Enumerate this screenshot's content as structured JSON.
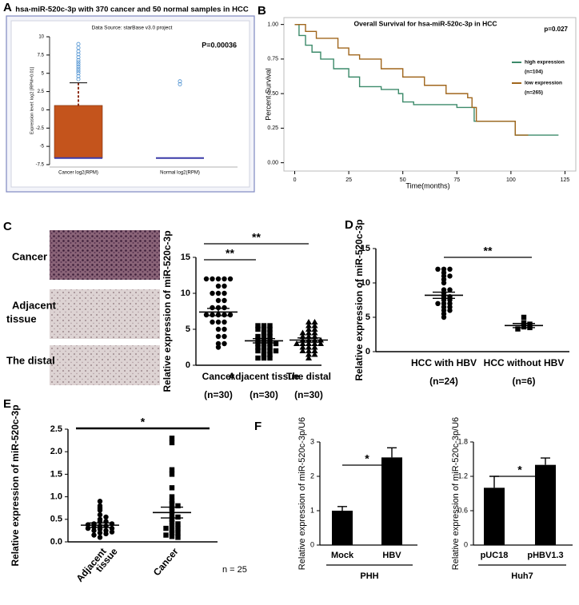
{
  "chart_data": [
    {
      "type": "box",
      "label": "A",
      "title": "hsa-miR-520c-3p with 370 cancer and 50 normal samples in HCC",
      "subtitle": "Data Source: starBase v3.0 project",
      "annotation": "P=0.00036",
      "y_label": "Expression level: log2 [RPM+0.01]",
      "categories": [
        "Cancer log2(RPM)",
        "Normal log2(RPM)"
      ],
      "boxes": [
        {
          "q1": -6.6,
          "median": -6.6,
          "q3": 0.6,
          "whisker_high": 3.7,
          "outliers": [
            4.2,
            4.6,
            5.0,
            5.3,
            5.6,
            5.9,
            6.2,
            6.5,
            6.8,
            7.2,
            7.6,
            8.0,
            8.5,
            9.0
          ]
        },
        {
          "q1": -6.6,
          "median": -6.6,
          "q3": -6.6,
          "whisker_high": -6.6,
          "outliers": [
            3.9,
            3.5
          ]
        }
      ],
      "box_color": "#c4541c",
      "median_color": "#3a3aa8",
      "outlier_color": "#4a8fd0",
      "whisker_color": "#8b2a10",
      "ylim": [
        -7.5,
        10
      ],
      "yticks": [
        10,
        7.5,
        5,
        2.5,
        0,
        -2.5,
        -5,
        -7.5
      ]
    },
    {
      "type": "line",
      "label": "B",
      "title": "Overall Survival for hsa-miR-520c-3p in HCC",
      "annotation": "p=0.027",
      "y_label": "Percent Survival",
      "x_label": "Time(months)",
      "series": [
        {
          "name": "high expression",
          "n_label": "(n=104)",
          "color": "#3c8a6a",
          "x": [
            0,
            2,
            5,
            8,
            12,
            18,
            25,
            30,
            40,
            48,
            50,
            55,
            75,
            83,
            100,
            102,
            122
          ],
          "values": [
            1,
            0.92,
            0.85,
            0.8,
            0.75,
            0.68,
            0.62,
            0.55,
            0.53,
            0.5,
            0.44,
            0.42,
            0.4,
            0.3,
            0.3,
            0.2,
            0.2
          ]
        },
        {
          "name": "low expression",
          "n_label": "(n=265)",
          "color": "#a0661c",
          "x": [
            0,
            5,
            10,
            20,
            25,
            30,
            40,
            50,
            60,
            70,
            80,
            82,
            84,
            100,
            102,
            108
          ],
          "values": [
            1,
            0.95,
            0.9,
            0.83,
            0.78,
            0.75,
            0.68,
            0.62,
            0.56,
            0.5,
            0.47,
            0.4,
            0.3,
            0.3,
            0.2,
            0.2
          ]
        }
      ],
      "xlim": [
        -5,
        130
      ],
      "xticks": [
        0,
        25,
        50,
        75,
        100,
        125
      ],
      "ylim": [
        -0.06,
        1.05
      ],
      "yticks": [
        {
          "value": 1,
          "label": "1.00"
        },
        0.75,
        {
          "value": 0.5,
          "label": "0.50"
        },
        0.25,
        {
          "value": 0,
          "label": "0.00"
        }
      ]
    },
    {
      "type": "dotplot",
      "label": "C",
      "image_labels": [
        [
          "Cancer"
        ],
        [
          "Adjacent",
          "tissue"
        ],
        [
          "The distal"
        ]
      ],
      "y_label": "Relative expression of miR-520c-3p",
      "categories": [
        "Cancer",
        "Adjacent tissue",
        "The distal"
      ],
      "n_labels": [
        "(n=30)",
        "(n=30)",
        "(n=30)"
      ],
      "significance": [
        "**",
        "**"
      ],
      "groups": [
        {
          "marker": "circle",
          "mean": 7.4,
          "sem": 0.5,
          "values": [
            12,
            12,
            12,
            12,
            12,
            11,
            11,
            10,
            10,
            10,
            9,
            9,
            8,
            8,
            8,
            7,
            7,
            7,
            7,
            7,
            6,
            6,
            6,
            5,
            5,
            4,
            4,
            3,
            3,
            2.5
          ]
        },
        {
          "marker": "square",
          "mean": 3.4,
          "sem": 0.3,
          "values": [
            5.5,
            5.5,
            5.5,
            5,
            5,
            5,
            4.5,
            4.5,
            4,
            4,
            4,
            3.5,
            3.5,
            3.5,
            3,
            3,
            3,
            3,
            2.5,
            2.5,
            2.5,
            2,
            2,
            2,
            2,
            1.5,
            1.5,
            1,
            1,
            1
          ]
        },
        {
          "marker": "triangle",
          "mean": 3.5,
          "sem": 0.3,
          "values": [
            6,
            6,
            5.5,
            5.5,
            5,
            5,
            4.5,
            4.5,
            4.5,
            4,
            4,
            4,
            3.5,
            3.5,
            3.5,
            3.5,
            3,
            3,
            3,
            3,
            3,
            2.5,
            2.5,
            2.5,
            2,
            2,
            2,
            1.5,
            1.5,
            1
          ]
        }
      ],
      "ylim": [
        0,
        15
      ],
      "yticks": [
        0,
        5,
        10,
        15
      ]
    },
    {
      "type": "dotplot",
      "label": "D",
      "y_label": "Relative expression of miR-520c-3p",
      "categories": [
        "HCC with HBV",
        "HCC without HBV"
      ],
      "n_labels": [
        "(n=24)",
        "(n=6)"
      ],
      "significance": [
        "**"
      ],
      "groups": [
        {
          "marker": "circle",
          "mean": 8.2,
          "sem": 0.45,
          "values": [
            12,
            12,
            12,
            11.5,
            11,
            11,
            10.5,
            10,
            9,
            9,
            8.5,
            8,
            8,
            7.5,
            7.5,
            7,
            7,
            7,
            6.5,
            6.5,
            6,
            6,
            5.5,
            5
          ]
        },
        {
          "marker": "square",
          "mean": 3.8,
          "sem": 0.3,
          "values": [
            5,
            4.2,
            4,
            3.6,
            3.5,
            3.3
          ]
        }
      ],
      "ylim": [
        0,
        15
      ],
      "yticks": [
        0,
        5,
        10,
        15
      ]
    },
    {
      "type": "dotplot",
      "label": "E",
      "y_label": "Relative expression of miR-520c-3p",
      "categories": [
        [
          "Adjacent",
          "tissue"
        ],
        [
          "Cancer"
        ]
      ],
      "note": "n = 25",
      "significance": [
        "*"
      ],
      "groups": [
        {
          "marker": "circle",
          "mean": 0.37,
          "sem": 0.05,
          "values": [
            0.9,
            0.8,
            0.75,
            0.7,
            0.6,
            0.55,
            0.5,
            0.45,
            0.45,
            0.4,
            0.4,
            0.38,
            0.35,
            0.35,
            0.33,
            0.3,
            0.3,
            0.28,
            0.25,
            0.25,
            0.22,
            0.2,
            0.18,
            0.15,
            0.1
          ]
        },
        {
          "marker": "square",
          "mean": 0.65,
          "sem": 0.12,
          "values": [
            2.3,
            2.2,
            1.6,
            1.5,
            1.2,
            1.0,
            0.9,
            0.85,
            0.8,
            0.75,
            0.7,
            0.6,
            0.55,
            0.5,
            0.45,
            0.4,
            0.35,
            0.3,
            0.3,
            0.25,
            0.2,
            0.2,
            0.15,
            0.12,
            0.1
          ]
        }
      ],
      "ylim": [
        0,
        2.5
      ],
      "yticks": [
        {
          "value": 0,
          "label": "0.0"
        },
        0.5,
        {
          "value": 1,
          "label": "1.0"
        },
        1.5,
        {
          "value": 2,
          "label": "2.0"
        },
        2.5
      ]
    },
    {
      "type": "bar",
      "label": "F",
      "y_label": "Relative expression of miR-520c-3p/U6",
      "categories": [
        "Mock",
        "HBV"
      ],
      "group_label": "PHH",
      "significance": [
        "*"
      ],
      "values": [
        1.0,
        2.55
      ],
      "errors": [
        0.12,
        0.28
      ],
      "color": "#000000",
      "ylim": [
        0,
        3
      ],
      "yticks": [
        0,
        1,
        2,
        3
      ]
    },
    {
      "type": "bar",
      "y_label": "Relative expression of miR-520c-3p/U6",
      "categories": [
        "pUC18",
        "pHBV1.3"
      ],
      "group_label": "Huh7",
      "significance": [
        "*"
      ],
      "values": [
        1.0,
        1.4
      ],
      "errors": [
        0.2,
        0.12
      ],
      "color": "#000000",
      "ylim": [
        0,
        1.8
      ],
      "yticks": [
        0,
        0.6,
        1.2,
        1.8
      ]
    }
  ]
}
